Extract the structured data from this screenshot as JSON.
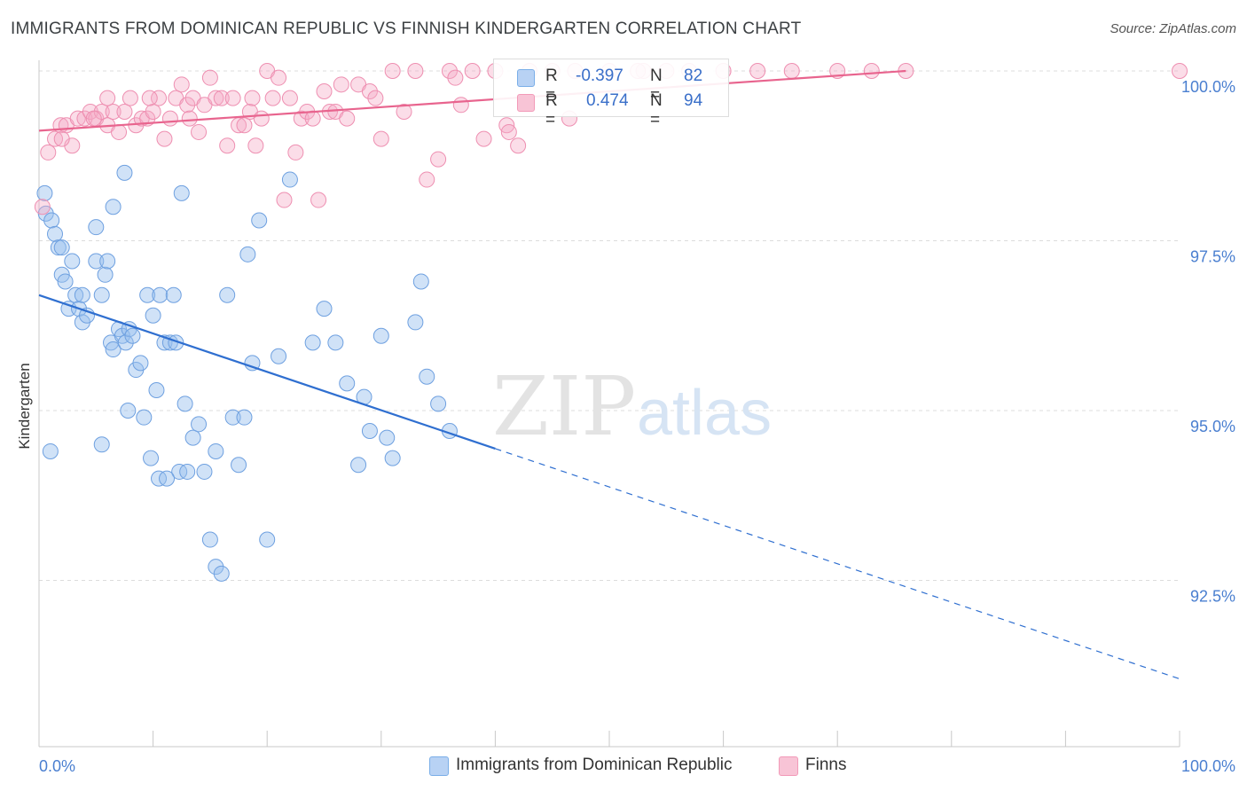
{
  "title": "IMMIGRANTS FROM DOMINICAN REPUBLIC VS FINNISH KINDERGARTEN CORRELATION CHART",
  "source": "Source: ZipAtlas.com",
  "watermark": {
    "zip": "ZIP",
    "atlas": "atlas"
  },
  "legend": {
    "blue": {
      "r_label": "R =",
      "r_value": "-0.397",
      "n_label": "N =",
      "n_value": "82"
    },
    "pink": {
      "r_label": "R =",
      "r_value": "0.474",
      "n_label": "N =",
      "n_value": "94"
    }
  },
  "bottom_legend": {
    "blue": "Immigrants from Dominican Republic",
    "pink": "Finns"
  },
  "colors": {
    "blue": "#7aaee8",
    "blue_line": "#2f6fd0",
    "pink": "#f29ab8",
    "pink_line": "#e8648e",
    "tick": "#4a7fd0"
  },
  "chart_data": {
    "type": "scatter",
    "xlabel": "",
    "ylabel": "Kindergarten",
    "xlim": [
      0,
      100
    ],
    "ylim": [
      90.0,
      100.4
    ],
    "x_tick_labels": [
      {
        "value": 0,
        "label": "0.0%"
      },
      {
        "value": 100,
        "label": "100.0%"
      }
    ],
    "y_ticks": [
      {
        "value": 100.0,
        "label": "100.0%"
      },
      {
        "value": 97.5,
        "label": "97.5%"
      },
      {
        "value": 95.0,
        "label": "95.0%"
      },
      {
        "value": 92.5,
        "label": "92.5%"
      }
    ],
    "series": [
      {
        "name": "Immigrants from Dominican Republic",
        "color": "#7aaee8",
        "trend": {
          "x0": 0,
          "y0": 96.7,
          "x1": 100,
          "y1": 91.05,
          "solid_until_x": 40
        },
        "points": [
          [
            0.5,
            98.2
          ],
          [
            0.6,
            97.9
          ],
          [
            1.1,
            97.8
          ],
          [
            1.4,
            97.6
          ],
          [
            1.7,
            97.4
          ],
          [
            2.0,
            97.0
          ],
          [
            2.3,
            96.9
          ],
          [
            2.6,
            96.5
          ],
          [
            2.9,
            97.2
          ],
          [
            3.2,
            96.7
          ],
          [
            3.5,
            96.5
          ],
          [
            3.8,
            96.7
          ],
          [
            3.8,
            96.3
          ],
          [
            4.2,
            96.4
          ],
          [
            5.0,
            97.2
          ],
          [
            5.5,
            96.7
          ],
          [
            5.8,
            97.0
          ],
          [
            6.0,
            97.2
          ],
          [
            6.3,
            96.0
          ],
          [
            6.5,
            95.9
          ],
          [
            7.0,
            96.2
          ],
          [
            7.3,
            96.1
          ],
          [
            7.6,
            96.0
          ],
          [
            7.9,
            96.2
          ],
          [
            8.2,
            96.1
          ],
          [
            8.5,
            95.6
          ],
          [
            8.9,
            95.7
          ],
          [
            9.2,
            94.9
          ],
          [
            9.5,
            96.7
          ],
          [
            10.0,
            96.4
          ],
          [
            10.3,
            95.3
          ],
          [
            10.6,
            96.7
          ],
          [
            11.0,
            96.0
          ],
          [
            11.5,
            96.0
          ],
          [
            11.8,
            96.7
          ],
          [
            12.0,
            96.0
          ],
          [
            12.3,
            94.1
          ],
          [
            12.8,
            95.1
          ],
          [
            13.5,
            94.6
          ],
          [
            14.0,
            94.8
          ],
          [
            14.5,
            94.1
          ],
          [
            15.0,
            93.1
          ],
          [
            15.5,
            92.7
          ],
          [
            16.0,
            92.6
          ],
          [
            16.5,
            96.7
          ],
          [
            17.0,
            94.9
          ],
          [
            17.5,
            94.2
          ],
          [
            18.0,
            94.9
          ],
          [
            18.3,
            97.3
          ],
          [
            18.7,
            95.7
          ],
          [
            19.3,
            97.8
          ],
          [
            20.0,
            93.1
          ],
          [
            21.0,
            95.8
          ],
          [
            22.0,
            98.4
          ],
          [
            24.0,
            96.0
          ],
          [
            25.0,
            96.5
          ],
          [
            26.0,
            96.0
          ],
          [
            27.0,
            95.4
          ],
          [
            28.0,
            94.2
          ],
          [
            28.5,
            95.2
          ],
          [
            29.0,
            94.7
          ],
          [
            30.0,
            96.1
          ],
          [
            30.5,
            94.6
          ],
          [
            31.0,
            94.3
          ],
          [
            33.0,
            96.3
          ],
          [
            33.5,
            96.9
          ],
          [
            34.0,
            95.5
          ],
          [
            35.0,
            95.1
          ],
          [
            36.0,
            94.7
          ],
          [
            1.0,
            94.4
          ],
          [
            5.5,
            94.5
          ],
          [
            7.8,
            95.0
          ],
          [
            9.8,
            94.3
          ],
          [
            10.5,
            94.0
          ],
          [
            11.2,
            94.0
          ],
          [
            13.0,
            94.1
          ],
          [
            15.5,
            94.4
          ],
          [
            7.5,
            98.5
          ],
          [
            12.5,
            98.2
          ],
          [
            6.5,
            98.0
          ],
          [
            5.0,
            97.7
          ],
          [
            2.0,
            97.4
          ]
        ]
      },
      {
        "name": "Finns",
        "color": "#f29ab8",
        "trend": {
          "x0": 0,
          "y0": 99.12,
          "x1": 76,
          "y1": 100.0
        },
        "points": [
          [
            0.3,
            98.0
          ],
          [
            0.8,
            98.8
          ],
          [
            1.4,
            99.0
          ],
          [
            1.9,
            99.2
          ],
          [
            2.4,
            99.2
          ],
          [
            2.9,
            98.9
          ],
          [
            3.4,
            99.3
          ],
          [
            4.0,
            99.3
          ],
          [
            4.5,
            99.4
          ],
          [
            5.0,
            99.3
          ],
          [
            5.5,
            99.4
          ],
          [
            6.0,
            99.2
          ],
          [
            6.5,
            99.4
          ],
          [
            7.0,
            99.1
          ],
          [
            7.5,
            99.4
          ],
          [
            8.0,
            99.6
          ],
          [
            8.5,
            99.2
          ],
          [
            9.0,
            99.3
          ],
          [
            9.5,
            99.3
          ],
          [
            10.0,
            99.4
          ],
          [
            10.5,
            99.6
          ],
          [
            11.0,
            99.0
          ],
          [
            11.5,
            99.3
          ],
          [
            12.0,
            99.6
          ],
          [
            12.5,
            99.8
          ],
          [
            13.0,
            99.5
          ],
          [
            13.5,
            99.6
          ],
          [
            14.0,
            99.1
          ],
          [
            14.5,
            99.5
          ],
          [
            15.0,
            99.9
          ],
          [
            15.5,
            99.6
          ],
          [
            16.0,
            99.6
          ],
          [
            16.5,
            98.9
          ],
          [
            17.0,
            99.6
          ],
          [
            17.5,
            99.2
          ],
          [
            18.0,
            99.2
          ],
          [
            18.5,
            99.4
          ],
          [
            19.0,
            98.9
          ],
          [
            19.5,
            99.3
          ],
          [
            20.0,
            100.0
          ],
          [
            20.5,
            99.6
          ],
          [
            21.0,
            99.9
          ],
          [
            21.5,
            98.1
          ],
          [
            22.0,
            99.6
          ],
          [
            22.5,
            98.8
          ],
          [
            23.0,
            99.3
          ],
          [
            23.5,
            99.4
          ],
          [
            24.0,
            99.3
          ],
          [
            24.5,
            98.1
          ],
          [
            25.0,
            99.7
          ],
          [
            25.5,
            99.4
          ],
          [
            26.0,
            99.4
          ],
          [
            27.0,
            99.3
          ],
          [
            28.0,
            99.8
          ],
          [
            29.0,
            99.7
          ],
          [
            30.0,
            99.0
          ],
          [
            31.0,
            100.0
          ],
          [
            32.0,
            99.4
          ],
          [
            33.0,
            100.0
          ],
          [
            34.0,
            98.4
          ],
          [
            35.0,
            98.7
          ],
          [
            36.0,
            100.0
          ],
          [
            37.0,
            99.5
          ],
          [
            38.0,
            100.0
          ],
          [
            39.0,
            99.0
          ],
          [
            40.0,
            100.0
          ],
          [
            41.0,
            99.2
          ],
          [
            42.0,
            98.9
          ],
          [
            43.0,
            100.0
          ],
          [
            45.0,
            100.0
          ],
          [
            47.0,
            100.0
          ],
          [
            50.0,
            100.0
          ],
          [
            53.0,
            100.0
          ],
          [
            55.0,
            100.0
          ],
          [
            57.0,
            100.0
          ],
          [
            60.0,
            100.0
          ],
          [
            63.0,
            100.0
          ],
          [
            66.0,
            100.0
          ],
          [
            70.0,
            100.0
          ],
          [
            73.0,
            100.0
          ],
          [
            76.0,
            100.0
          ],
          [
            100.0,
            100.0
          ],
          [
            6.0,
            99.6
          ],
          [
            13.2,
            99.3
          ],
          [
            26.5,
            99.8
          ],
          [
            2.0,
            99.0
          ],
          [
            18.7,
            99.6
          ],
          [
            36.5,
            99.9
          ],
          [
            41.2,
            99.1
          ],
          [
            52.5,
            100.0
          ],
          [
            46.5,
            99.3
          ],
          [
            4.8,
            99.3
          ],
          [
            29.5,
            99.6
          ],
          [
            9.7,
            99.6
          ]
        ]
      }
    ]
  }
}
